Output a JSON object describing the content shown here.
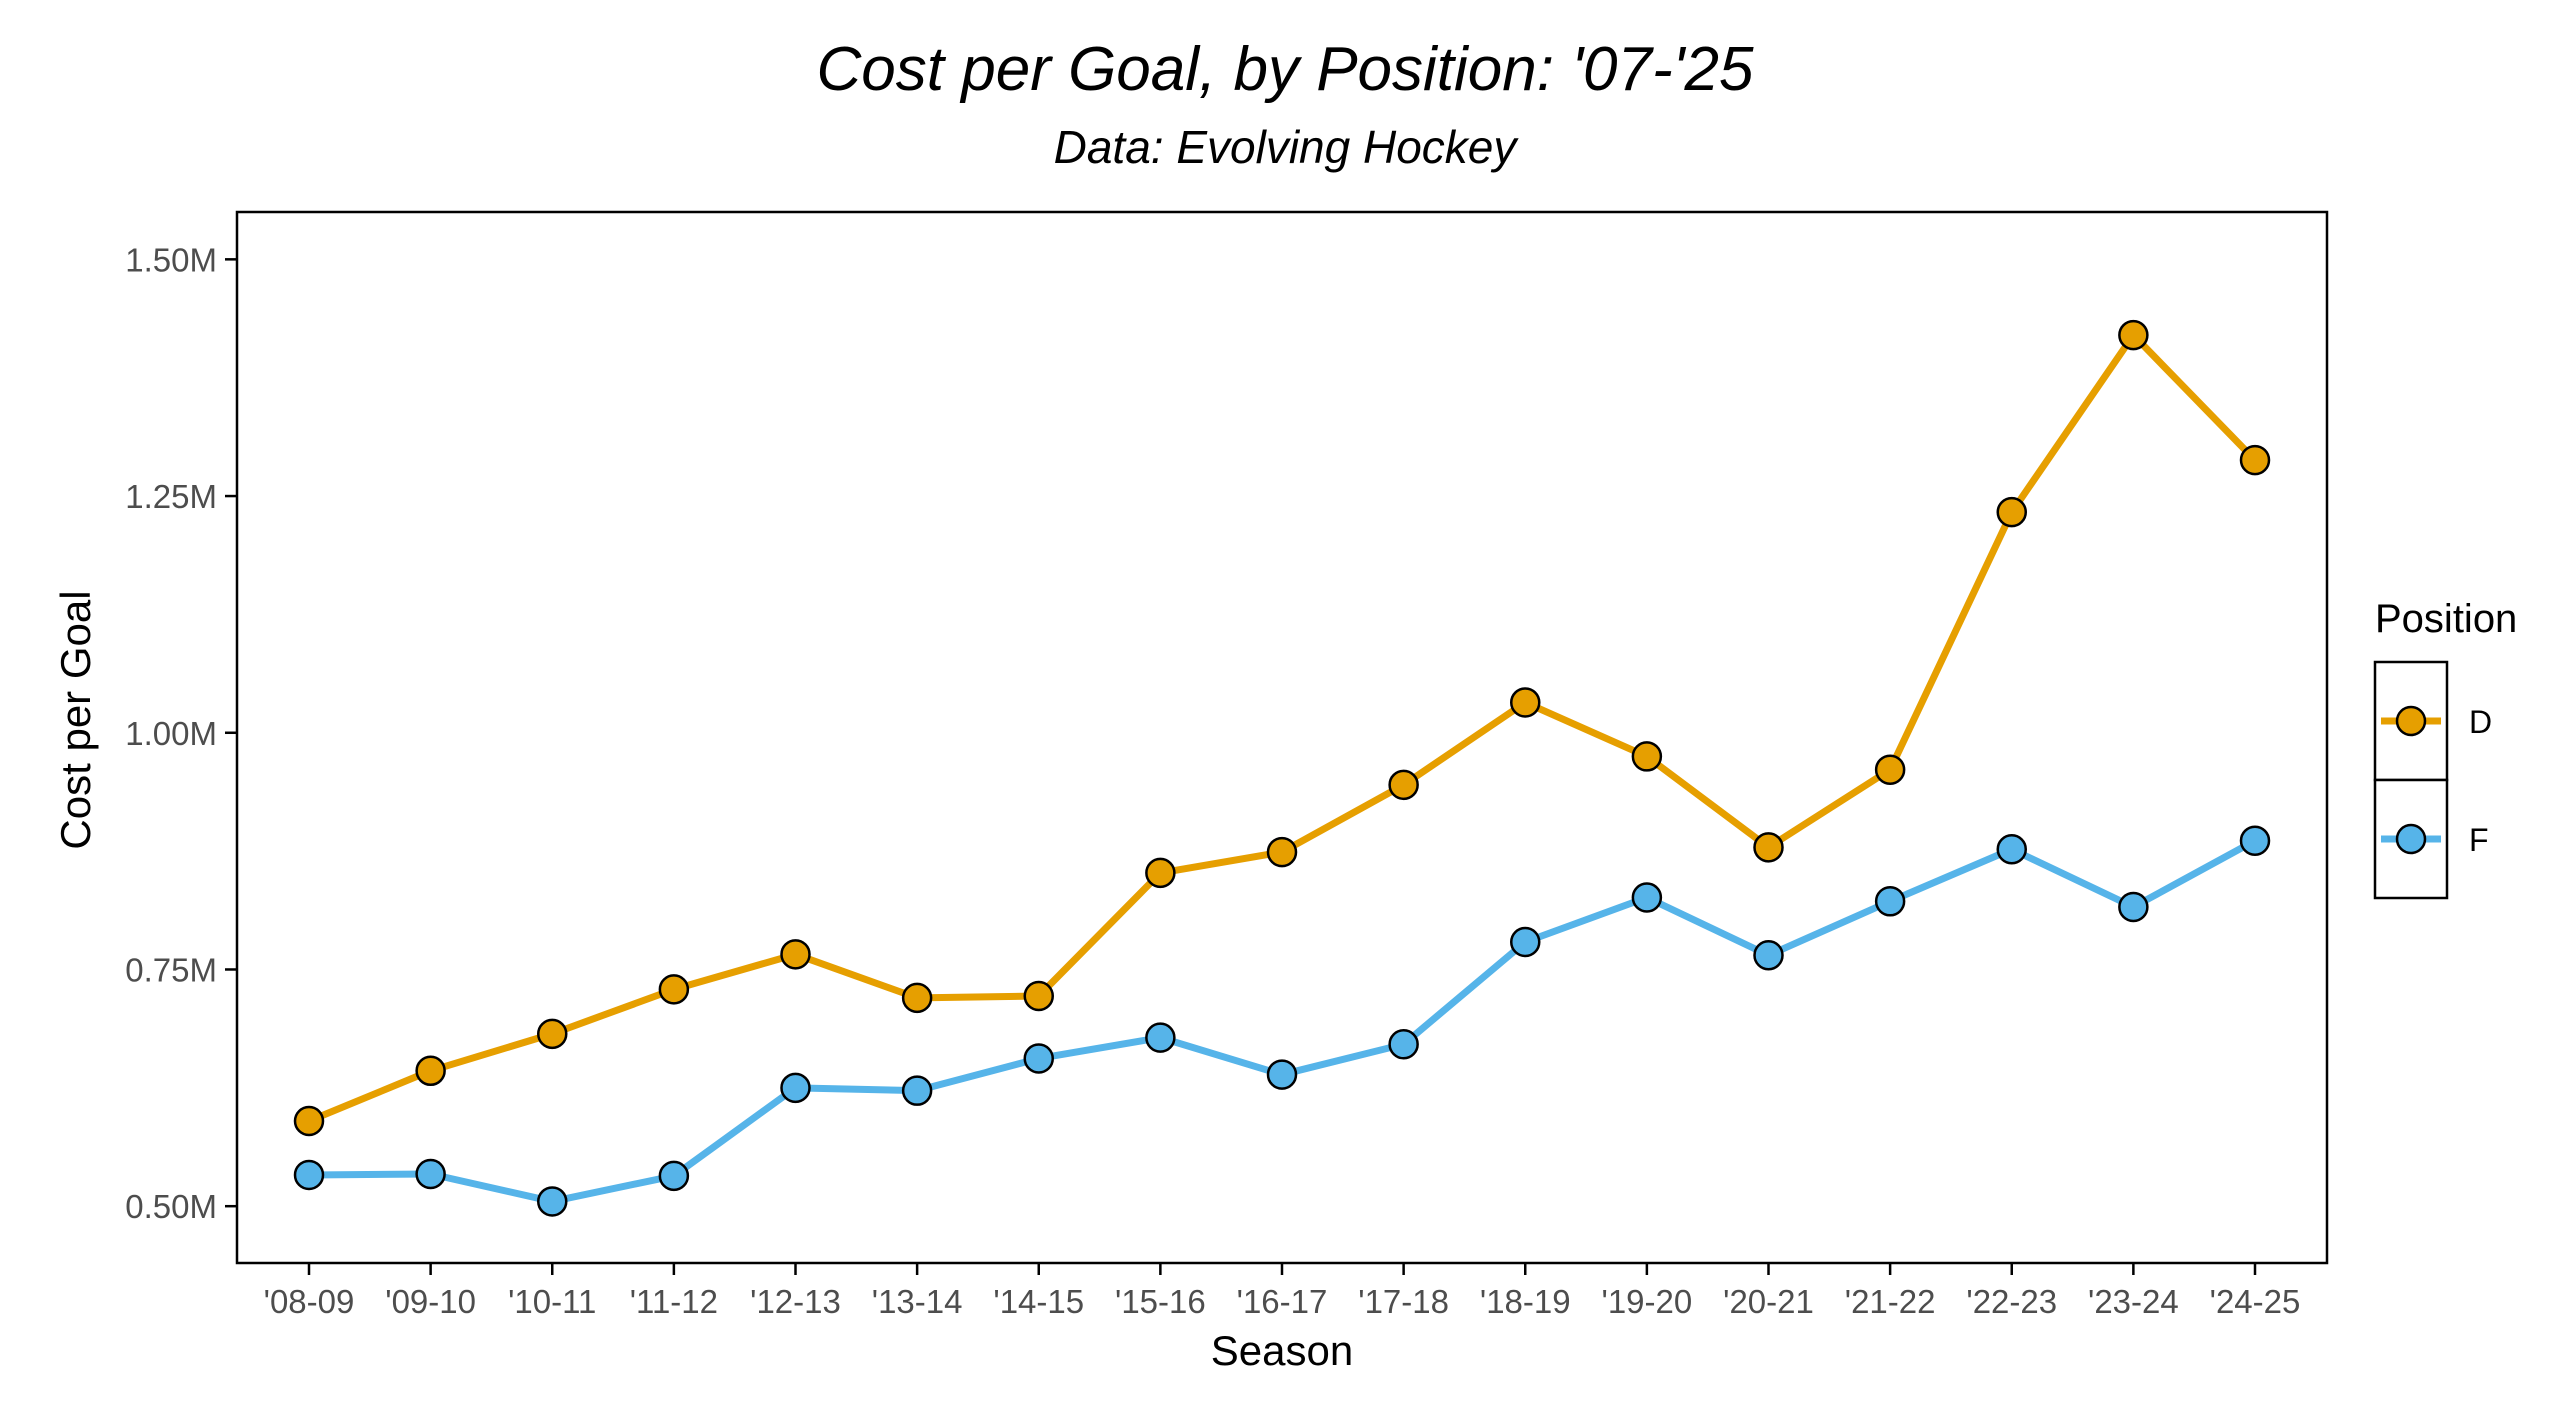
{
  "chart_data": {
    "type": "line",
    "title": "Cost per Goal, by Position: '07-'25",
    "subtitle": "Data: Evolving Hockey",
    "xlabel": "Season",
    "ylabel": "Cost per Goal",
    "categories": [
      "'08-09",
      "'09-10",
      "'10-11",
      "'11-12",
      "'12-13",
      "'13-14",
      "'14-15",
      "'15-16",
      "'16-17",
      "'17-18",
      "'18-19",
      "'19-20",
      "'20-21",
      "'21-22",
      "'22-23",
      "'23-24",
      "'24-25"
    ],
    "ylim": [
      0.44,
      1.55
    ],
    "yticks": [
      0.5,
      0.75,
      1.0,
      1.25,
      1.5
    ],
    "ytick_labels": [
      "0.50M",
      "0.75M",
      "1.00M",
      "1.25M",
      "1.50M"
    ],
    "grid": false,
    "legend": {
      "title": "Position",
      "placement": "right"
    },
    "series": [
      {
        "name": "D",
        "color": "#E69F00",
        "values": [
          0.59,
          0.643,
          0.682,
          0.729,
          0.766,
          0.72,
          0.722,
          0.852,
          0.874,
          0.945,
          1.032,
          0.975,
          0.879,
          0.961,
          1.233,
          1.42,
          1.288
        ]
      },
      {
        "name": "F",
        "color": "#56B4E9",
        "values": [
          0.533,
          0.534,
          0.505,
          0.532,
          0.625,
          0.622,
          0.656,
          0.678,
          0.639,
          0.671,
          0.779,
          0.826,
          0.765,
          0.822,
          0.877,
          0.816,
          0.886
        ]
      }
    ]
  }
}
